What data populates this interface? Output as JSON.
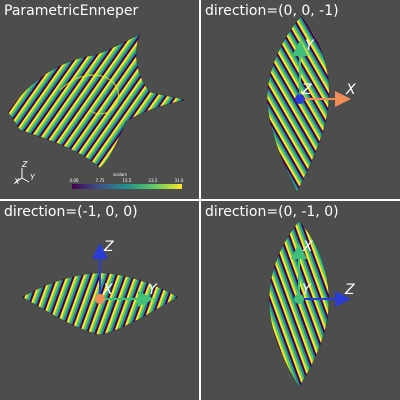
{
  "viewports": [
    {
      "title": "ParametricEnneper"
    },
    {
      "title": "direction=(0, 0, -1)",
      "axes": {
        "h": "X",
        "v": "Y",
        "c": "Z"
      }
    },
    {
      "title": "direction=(-1, 0, 0)",
      "axes": {
        "h": "Y",
        "v": "Z",
        "c": "X"
      }
    },
    {
      "title": "direction=(0, -1, 0)",
      "axes": {
        "h": "Z",
        "v": "X",
        "c": "Y"
      }
    }
  ],
  "mini_axes": {
    "x": "X",
    "y": "Y",
    "z": "Z"
  },
  "scalar_bar": {
    "title": "scalars",
    "ticks": [
      "0.00",
      "7.75",
      "15.5",
      "23.2",
      "31.0"
    ]
  },
  "colors": {
    "background": "#4d4d4d",
    "divider": "#ffffff",
    "x_axis": "#f08c5a",
    "y_axis": "#42c07a",
    "z_axis": "#2a3cd4",
    "colormap": [
      "#440154",
      "#3b528b",
      "#21918c",
      "#5ec962",
      "#fde725"
    ]
  }
}
